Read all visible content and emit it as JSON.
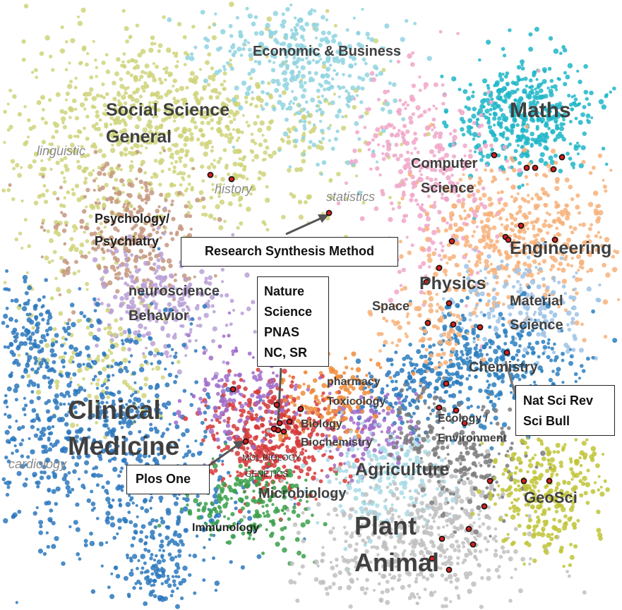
{
  "clusters": [
    {
      "name": "social-science",
      "color": "#cfd37a"
    },
    {
      "name": "economics",
      "color": "#8fd4e0"
    },
    {
      "name": "maths",
      "color": "#1fb6c8"
    },
    {
      "name": "computer-science",
      "color": "#f0a6c8"
    },
    {
      "name": "engineering",
      "color": "#f7b27a"
    },
    {
      "name": "material-science",
      "color": "#9fc3e6"
    },
    {
      "name": "chemistry",
      "color": "#2a7fc0"
    },
    {
      "name": "psychology",
      "color": "#c4977e"
    },
    {
      "name": "neuroscience",
      "color": "#b9a0d6"
    },
    {
      "name": "clinical",
      "color": "#2c78bd"
    },
    {
      "name": "molbio",
      "color": "#d63a3a"
    },
    {
      "name": "microbiology",
      "color": "#3aa04a"
    },
    {
      "name": "pharmacy",
      "color": "#f08c3a"
    },
    {
      "name": "agriculture",
      "color": "#a8dbe6"
    },
    {
      "name": "plant-animal",
      "color": "#c0c0c0"
    },
    {
      "name": "ecology",
      "color": "#7a7a7a"
    },
    {
      "name": "geosci",
      "color": "#bfc436"
    },
    {
      "name": "biology-purple",
      "color": "#a06cc9"
    }
  ],
  "labels": {
    "economic": "Economic & Business",
    "social_science_1": "Social Science",
    "social_science_2": "General",
    "maths": "Maths",
    "computer_science_1": "Computer",
    "computer_science_2": "Science",
    "psychology_1": "Psychology/",
    "psychology_2": "Psychiatry",
    "engineering": "Engineering",
    "physics": "Physics",
    "material_1": "Material",
    "material_2": "Science",
    "neuroscience_1": "neuroscience",
    "neuroscience_2": "Behavior",
    "space": "Space",
    "chemistry": "Chemistry",
    "pharmacy_1": "pharmacy",
    "pharmacy_2": "Toxicology",
    "clinical_1": "Clinical",
    "clinical_2": "Medicine",
    "biology": "Biology",
    "biochemistry": "Biochemistry",
    "ecology_1": "Ecology /",
    "ecology_2": "Environment",
    "molbio_1": "MOL BIOLOGY",
    "molbio_2": "GENETICS",
    "agriculture": "Agriculture",
    "microbiology": "Microbiology",
    "geosci": "GeoSci",
    "immunology": "Immunology",
    "plant": "Plant",
    "animal": "Animal"
  },
  "italic_labels": {
    "linguistic": "linguistic",
    "history": "history",
    "statistics": "statistics",
    "cardiology": "cardiology"
  },
  "boxes": {
    "research_synthesis": "Research Synthesis Method",
    "journals": [
      "Nature",
      "Science",
      "PNAS",
      "NC, SR"
    ],
    "nat_sci": [
      "Nat Sci Rev",
      "Sci Bull"
    ],
    "plos_one": "Plos One"
  }
}
